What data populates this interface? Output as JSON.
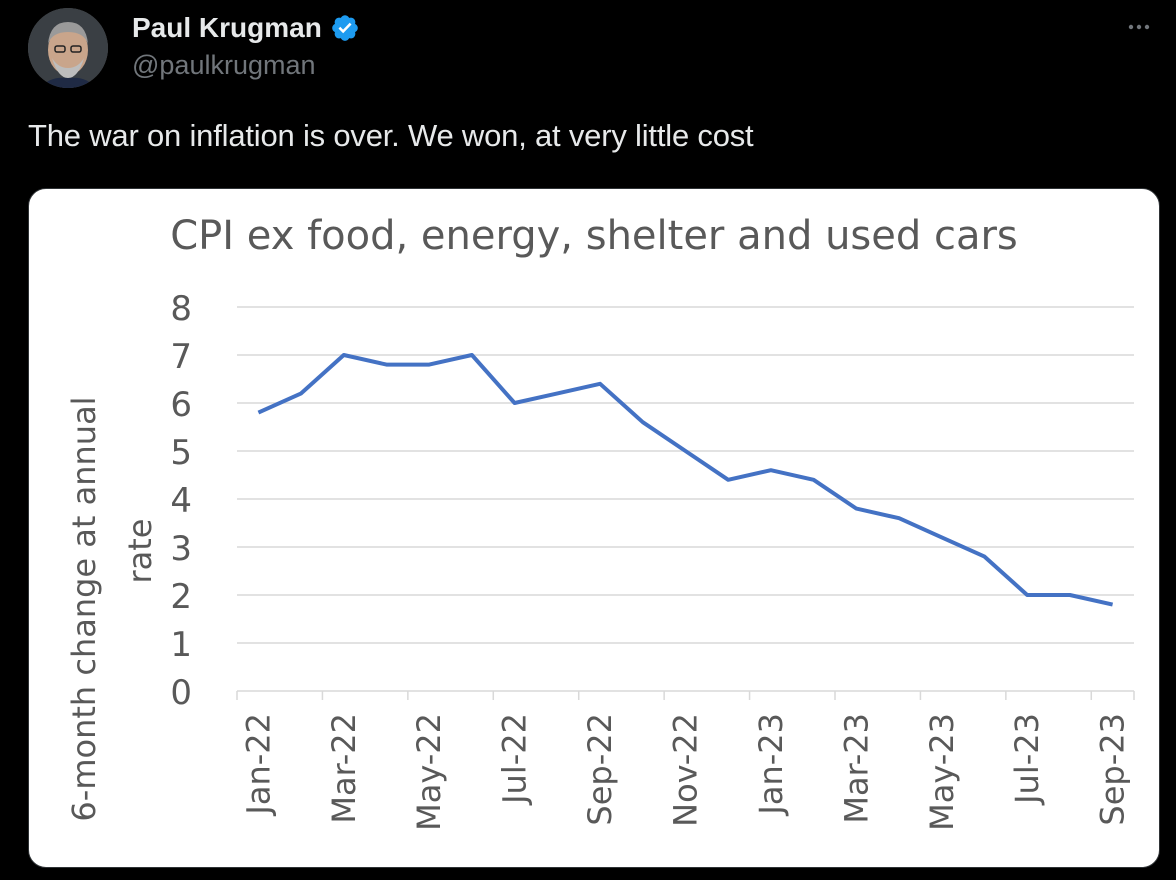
{
  "author": {
    "name": "Paul Krugman",
    "handle": "@paulkrugman",
    "verified": true,
    "avatar_icon": "avatar-photo"
  },
  "menu_icon": "more-options-icon",
  "tweet_text": "The war on inflation is over. We won, at very little cost",
  "colors": {
    "background": "#000000",
    "text": "#e7e9ea",
    "secondary_text": "#71767b",
    "verified_badge": "#1d9bf0",
    "series_line": "#4472c4"
  },
  "chart_data": {
    "type": "line",
    "title": "CPI ex food, energy, shelter and used cars",
    "xlabel": "",
    "ylabel": "6-month change at annual rate",
    "ylim": [
      0,
      8
    ],
    "yticks": [
      "0",
      "1",
      "2",
      "3",
      "4",
      "5",
      "6",
      "7",
      "8"
    ],
    "grid": true,
    "legend": "none",
    "x": [
      "Jan-22",
      "Feb-22",
      "Mar-22",
      "Apr-22",
      "May-22",
      "Jun-22",
      "Jul-22",
      "Aug-22",
      "Sep-22",
      "Oct-22",
      "Nov-22",
      "Dec-22",
      "Jan-23",
      "Feb-23",
      "Mar-23",
      "Apr-23",
      "May-23",
      "Jun-23",
      "Jul-23",
      "Aug-23",
      "Sep-23"
    ],
    "x_tick_labels": [
      "Jan-22",
      "Mar-22",
      "May-22",
      "Jul-22",
      "Sep-22",
      "Nov-22",
      "Jan-23",
      "Mar-23",
      "May-23",
      "Jul-23",
      "Sep-23"
    ],
    "series": [
      {
        "values": [
          5.8,
          6.2,
          7.0,
          6.8,
          6.8,
          7.0,
          6.0,
          6.2,
          6.4,
          5.6,
          5.0,
          4.4,
          4.6,
          4.4,
          3.8,
          3.6,
          3.2,
          2.8,
          2.0,
          2.0,
          1.8
        ]
      }
    ]
  }
}
